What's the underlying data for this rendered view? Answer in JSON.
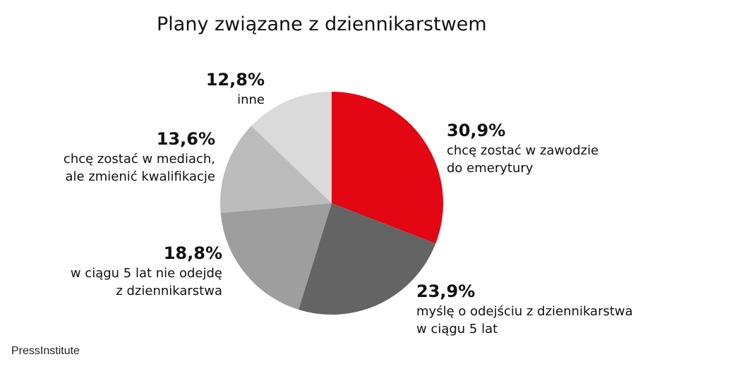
{
  "chart_data": {
    "type": "pie",
    "title": "Plany związane z dziennikarstwem",
    "slices": [
      {
        "value": 30.9,
        "percent_label": "30,9%",
        "label": "chcę zostać w zawodzie\ndo emerytury",
        "color": "#e30613"
      },
      {
        "value": 23.9,
        "percent_label": "23,9%",
        "label": "myślę o odejściu z dziennikarstwa\nw ciągu 5 lat",
        "color": "#646464"
      },
      {
        "value": 18.8,
        "percent_label": "18,8%",
        "label": "w ciągu 5 lat nie odejdę\nz dziennikarstwa",
        "color": "#9e9e9e"
      },
      {
        "value": 13.6,
        "percent_label": "13,6%",
        "label": "chcę zostać w mediach,\nale zmienić kwalifikacje",
        "color": "#bcbcbc"
      },
      {
        "value": 12.8,
        "percent_label": "12,8%",
        "label": "inne",
        "color": "#dadada"
      }
    ],
    "start_angle_deg": 0,
    "direction": "clockwise",
    "legend": "none"
  },
  "source": "PressInstitute"
}
